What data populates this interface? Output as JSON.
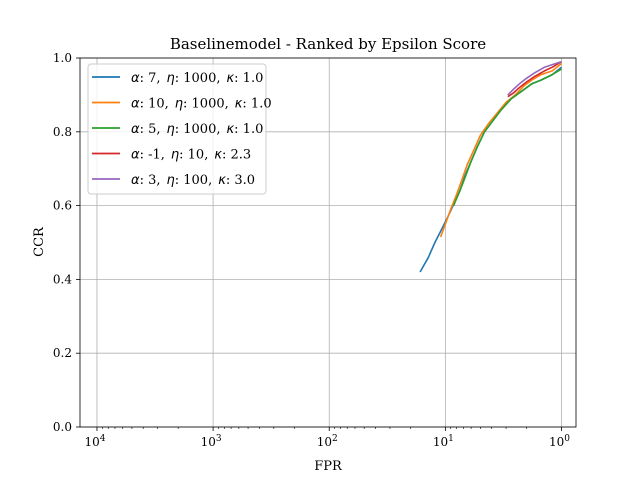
{
  "chart_data": {
    "type": "line",
    "title": "Baselinemodel - Ranked by Epsilon Score",
    "xlabel": "FPR",
    "ylabel": "CCR",
    "x_scale": "log",
    "x_reversed": true,
    "xlim": [
      14000,
      0.75
    ],
    "ylim": [
      0.0,
      1.0
    ],
    "grid": true,
    "legend_position": "upper-left",
    "x_ticks": [
      {
        "value": 10000,
        "base": "10",
        "exp": "4"
      },
      {
        "value": 1000,
        "base": "10",
        "exp": "3"
      },
      {
        "value": 100,
        "base": "10",
        "exp": "2"
      },
      {
        "value": 10,
        "base": "10",
        "exp": "1"
      },
      {
        "value": 1,
        "base": "10",
        "exp": "0"
      }
    ],
    "y_ticks": [
      {
        "value": 0.0,
        "label": "0.0"
      },
      {
        "value": 0.2,
        "label": "0.2"
      },
      {
        "value": 0.4,
        "label": "0.4"
      },
      {
        "value": 0.6,
        "label": "0.6"
      },
      {
        "value": 0.8,
        "label": "0.8"
      },
      {
        "value": 1.0,
        "label": "1.0"
      }
    ],
    "series": [
      {
        "name": "α: 7,  η: 1000,  κ: 1.0",
        "sym": [
          "α",
          "η",
          "κ"
        ],
        "vals": [
          ": 7,",
          ": 1000,",
          ": 1.0"
        ],
        "color": "#1f77b4",
        "points": [
          [
            16.5,
            0.42
          ],
          [
            14,
            0.46
          ],
          [
            12.3,
            0.5
          ],
          [
            11,
            0.53
          ],
          [
            9.5,
            0.57
          ],
          [
            8.3,
            0.61
          ],
          [
            7.5,
            0.64
          ],
          [
            6.8,
            0.68
          ],
          [
            6,
            0.72
          ],
          [
            5.3,
            0.76
          ],
          [
            4.6,
            0.8
          ],
          [
            3.9,
            0.83
          ],
          [
            3.3,
            0.86
          ],
          [
            2.7,
            0.89
          ],
          [
            2.2,
            0.91
          ],
          [
            1.8,
            0.93
          ],
          [
            1.5,
            0.94
          ],
          [
            1.2,
            0.955
          ],
          [
            1.0,
            0.975
          ]
        ]
      },
      {
        "name": "α: 10,  η: 1000,  κ: 1.0",
        "sym": [
          "α",
          "η",
          "κ"
        ],
        "vals": [
          ": 10,",
          ": 1000,",
          ": 1.0"
        ],
        "color": "#ff7f0e",
        "points": [
          [
            11,
            0.515
          ],
          [
            10,
            0.55
          ],
          [
            9,
            0.59
          ],
          [
            8,
            0.63
          ],
          [
            7.2,
            0.67
          ],
          [
            6.5,
            0.71
          ],
          [
            5.7,
            0.75
          ],
          [
            5,
            0.79
          ],
          [
            4.3,
            0.82
          ],
          [
            3.6,
            0.85
          ],
          [
            3,
            0.88
          ],
          [
            2.5,
            0.9
          ],
          [
            2.1,
            0.925
          ],
          [
            1.8,
            0.94
          ],
          [
            1.5,
            0.955
          ],
          [
            1.2,
            0.965
          ],
          [
            1.0,
            0.985
          ]
        ]
      },
      {
        "name": "α: 5,  η: 1000,  κ: 1.0",
        "sym": [
          "α",
          "η",
          "κ"
        ],
        "vals": [
          ": 5,",
          ": 1000,",
          ": 1.0"
        ],
        "color": "#2ca02c",
        "points": [
          [
            8.5,
            0.6
          ],
          [
            7.5,
            0.64
          ],
          [
            6.7,
            0.68
          ],
          [
            6,
            0.72
          ],
          [
            5.3,
            0.76
          ],
          [
            4.6,
            0.8
          ],
          [
            3.9,
            0.83
          ],
          [
            3.3,
            0.86
          ],
          [
            2.7,
            0.89
          ],
          [
            2.2,
            0.91
          ],
          [
            1.8,
            0.93
          ],
          [
            1.5,
            0.94
          ],
          [
            1.2,
            0.955
          ],
          [
            1.0,
            0.97
          ]
        ]
      },
      {
        "name": "α: -1,  η: 10,  κ: 2.3",
        "sym": [
          "α",
          "η",
          "κ"
        ],
        "vals": [
          ": -1,",
          ": 10,",
          ": 2.3"
        ],
        "color": "#d62728",
        "points": [
          [
            2.9,
            0.895
          ],
          [
            2.6,
            0.905
          ],
          [
            2.3,
            0.92
          ],
          [
            2,
            0.935
          ],
          [
            1.7,
            0.95
          ],
          [
            1.4,
            0.965
          ],
          [
            1.2,
            0.975
          ],
          [
            1.0,
            0.99
          ]
        ]
      },
      {
        "name": "α: 3,  η: 100,  κ: 3.0",
        "sym": [
          "α",
          "η",
          "κ"
        ],
        "vals": [
          ": 3,",
          ": 100,",
          ": 3.0"
        ],
        "color": "#9467bd",
        "points": [
          [
            2.9,
            0.9
          ],
          [
            2.6,
            0.915
          ],
          [
            2.3,
            0.93
          ],
          [
            2,
            0.945
          ],
          [
            1.7,
            0.96
          ],
          [
            1.4,
            0.975
          ],
          [
            1.2,
            0.982
          ],
          [
            1.0,
            0.99
          ]
        ]
      }
    ]
  }
}
